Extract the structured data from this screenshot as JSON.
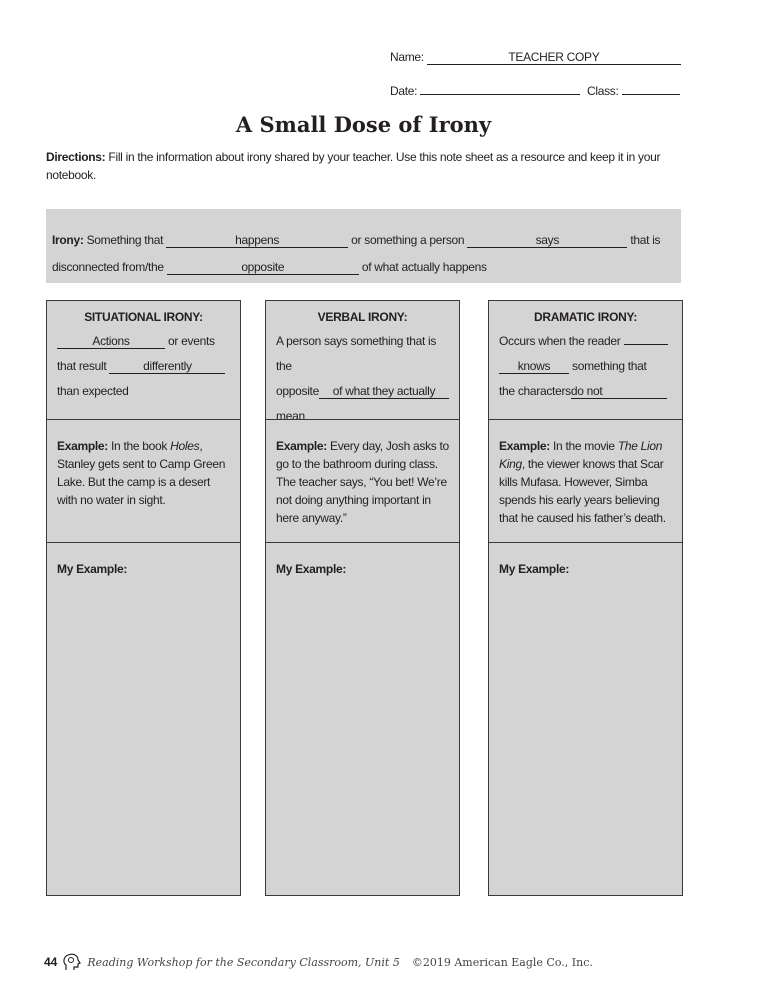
{
  "header": {
    "name_label": "Name:",
    "name_value": "TEACHER COPY",
    "date_label": "Date:",
    "date_value": "",
    "class_label": "Class:",
    "class_value": ""
  },
  "title": "A Small Dose of Irony",
  "directions": {
    "label": "Directions:",
    "text": " Fill in the information about irony shared by your teacher. Use this note sheet as a resource and keep it in your notebook."
  },
  "definition": {
    "label": "Irony:",
    "t1": " Something that ",
    "b1": "happens",
    "t2": " or something a person ",
    "b2": "says",
    "t3": " that is",
    "t4": "disconnected from/the ",
    "b3": "opposite",
    "t5": " of what actually happens"
  },
  "columns": [
    {
      "heading": "SITUATIONAL IRONY:",
      "example_label": "Example:",
      "my_example_label": "My Example:"
    },
    {
      "heading": "VERBAL IRONY:",
      "example_label": "Example:",
      "my_example_label": "My Example:"
    },
    {
      "heading": "DRAMATIC IRONY:",
      "example_label": "Example:",
      "my_example_label": "My Example:"
    }
  ],
  "situational": {
    "b1": "Actions",
    "t1": "or events",
    "t2": "that result ",
    "b2": "differently",
    "t3": "than expected",
    "ex1": " In the book ",
    "ex_title": "Holes",
    "ex2": ", Stanley gets sent to Camp Green Lake. But the camp is a desert with no water in sight."
  },
  "verbal": {
    "t1": "A person says something that is the",
    "t2": "opposite",
    "b1": "of what they actually",
    "b2": "mean",
    "ex1": " Every day, Josh asks to go to the bathroom during class. The teacher says, “You bet! We’re not doing anything important in here anyway.”"
  },
  "dramatic": {
    "t1": "Occurs when the reader ",
    "b1": "knows",
    "t2": " something that",
    "t3": "the characters",
    "b2": "do not",
    "ex1": " In the movie ",
    "ex_title": "The Lion King",
    "ex2": ", the viewer knows that Scar kills Mufasa. However, Simba spends his early years believing that he caused his father’s death."
  },
  "footer": {
    "page": "44",
    "book": "Reading Workshop for the Secondary Classroom, Unit 5",
    "copyright": "©2019 American Eagle Co., Inc."
  },
  "icons": [
    "head-logo-icon"
  ]
}
